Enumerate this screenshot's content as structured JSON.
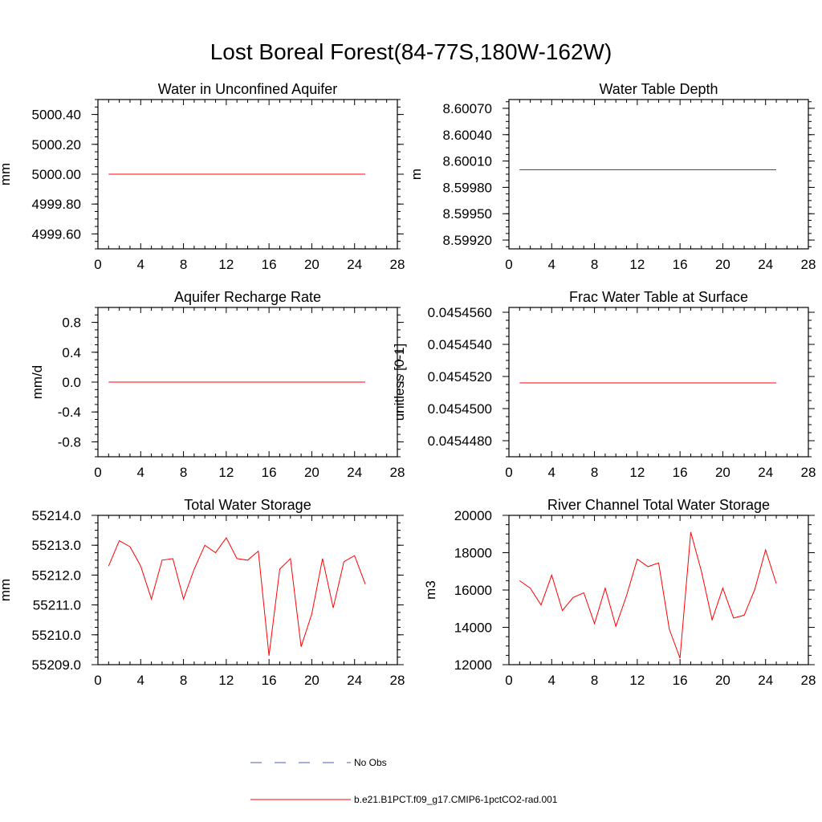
{
  "figure": {
    "title": "Lost Boreal Forest(84-77S,180W-162W)",
    "line_color": "#ff0000",
    "obs_color": "#4a5fc1"
  },
  "legend": {
    "items": [
      {
        "label": "No Obs",
        "style": "dashed",
        "color": "#4a5fc1"
      },
      {
        "label": "b.e21.B1PCT.f09_g17.CMIP6-1pctCO2-rad.001",
        "style": "solid",
        "color": "#ff0000"
      }
    ]
  },
  "chart_data": [
    {
      "type": "line",
      "title": "Water in Unconfined Aquifer",
      "ylabel": "mm",
      "xlim": [
        0,
        28
      ],
      "xticks": [
        "0",
        "4",
        "8",
        "12",
        "16",
        "20",
        "24",
        "28"
      ],
      "ylim": [
        4999.5,
        5000.5
      ],
      "yticks": [
        "5000.40",
        "5000.20",
        "5000.00",
        "4999.80",
        "4999.60"
      ],
      "ytick_values": [
        5000.4,
        5000.2,
        5000.0,
        4999.8,
        4999.6
      ],
      "series": [
        {
          "x": [
            1,
            25
          ],
          "values": [
            5000.0,
            5000.0
          ]
        }
      ]
    },
    {
      "type": "line",
      "title": "Water Table Depth",
      "ylabel": "m",
      "xlim": [
        0,
        28
      ],
      "xticks": [
        "0",
        "4",
        "8",
        "12",
        "16",
        "20",
        "24",
        "28"
      ],
      "ylim": [
        8.5991,
        8.6008
      ],
      "yticks": [
        "8.60070",
        "8.60040",
        "8.60010",
        "8.59980",
        "8.59950",
        "8.59920"
      ],
      "ytick_values": [
        8.6007,
        8.6004,
        8.6001,
        8.5998,
        8.5995,
        8.5992
      ],
      "series": [
        {
          "x": [
            1,
            25
          ],
          "values": [
            8.6,
            8.6
          ]
        }
      ]
    },
    {
      "type": "line",
      "title": "Aquifer Recharge Rate",
      "ylabel": "mm/d",
      "xlim": [
        0,
        28
      ],
      "xticks": [
        "0",
        "4",
        "8",
        "12",
        "16",
        "20",
        "24",
        "28"
      ],
      "ylim": [
        -1.0,
        1.0
      ],
      "yticks": [
        "0.8",
        "0.4",
        "0.0",
        "-0.4",
        "-0.8"
      ],
      "ytick_values": [
        0.8,
        0.4,
        0.0,
        -0.4,
        -0.8
      ],
      "series": [
        {
          "x": [
            1,
            25
          ],
          "values": [
            0.0,
            0.0
          ]
        }
      ]
    },
    {
      "type": "line",
      "title": "Frac Water Table at Surface",
      "ylabel": "unitless [0-1]",
      "xlim": [
        0,
        28
      ],
      "xticks": [
        "0",
        "4",
        "8",
        "12",
        "16",
        "20",
        "24",
        "28"
      ],
      "ylim": [
        0.045447,
        0.0454563
      ],
      "yticks": [
        "0.0454560",
        "0.0454540",
        "0.0454520",
        "0.0454500",
        "0.0454480"
      ],
      "ytick_values": [
        0.045456,
        0.045454,
        0.045452,
        0.04545,
        0.045448
      ],
      "series": [
        {
          "x": [
            1,
            25
          ],
          "values": [
            0.0454516,
            0.0454516
          ]
        }
      ]
    },
    {
      "type": "line",
      "title": "Total Water Storage",
      "ylabel": "mm",
      "xlim": [
        0,
        28
      ],
      "xticks": [
        "0",
        "4",
        "8",
        "12",
        "16",
        "20",
        "24",
        "28"
      ],
      "ylim": [
        55209.0,
        55214.0
      ],
      "yticks": [
        "55214.0",
        "55213.0",
        "55212.0",
        "55211.0",
        "55210.0",
        "55209.0"
      ],
      "ytick_values": [
        55214.0,
        55213.0,
        55212.0,
        55211.0,
        55210.0,
        55209.0
      ],
      "series": [
        {
          "x": [
            1,
            2,
            3,
            4,
            5,
            6,
            7,
            8,
            9,
            10,
            11,
            12,
            13,
            14,
            15,
            16,
            17,
            18,
            19,
            20,
            21,
            22,
            23,
            24,
            25
          ],
          "values": [
            55212.3,
            55213.15,
            55212.95,
            55212.3,
            55211.2,
            55212.5,
            55212.55,
            55211.2,
            55212.2,
            55213.0,
            55212.75,
            55213.25,
            55212.55,
            55212.5,
            55212.8,
            55209.3,
            55212.2,
            55212.55,
            55209.6,
            55210.7,
            55212.55,
            55210.9,
            55212.45,
            55212.65,
            55211.7
          ]
        }
      ]
    },
    {
      "type": "line",
      "title": "River Channel Total Water Storage",
      "ylabel": "m3",
      "xlim": [
        0,
        28
      ],
      "xticks": [
        "0",
        "4",
        "8",
        "12",
        "16",
        "20",
        "24",
        "28"
      ],
      "ylim": [
        12000,
        20000
      ],
      "yticks": [
        "20000",
        "18000",
        "16000",
        "14000",
        "12000"
      ],
      "ytick_values": [
        20000,
        18000,
        16000,
        14000,
        12000
      ],
      "series": [
        {
          "x": [
            1,
            2,
            3,
            4,
            5,
            6,
            7,
            8,
            9,
            10,
            11,
            12,
            13,
            14,
            15,
            16,
            17,
            18,
            19,
            20,
            21,
            22,
            23,
            24,
            25
          ],
          "values": [
            16500,
            16100,
            15200,
            16800,
            14900,
            15600,
            15850,
            14200,
            16100,
            14050,
            15700,
            17650,
            17250,
            17450,
            13900,
            12350,
            19100,
            17000,
            14400,
            16100,
            14500,
            14650,
            16050,
            18150,
            16350
          ]
        }
      ]
    }
  ]
}
